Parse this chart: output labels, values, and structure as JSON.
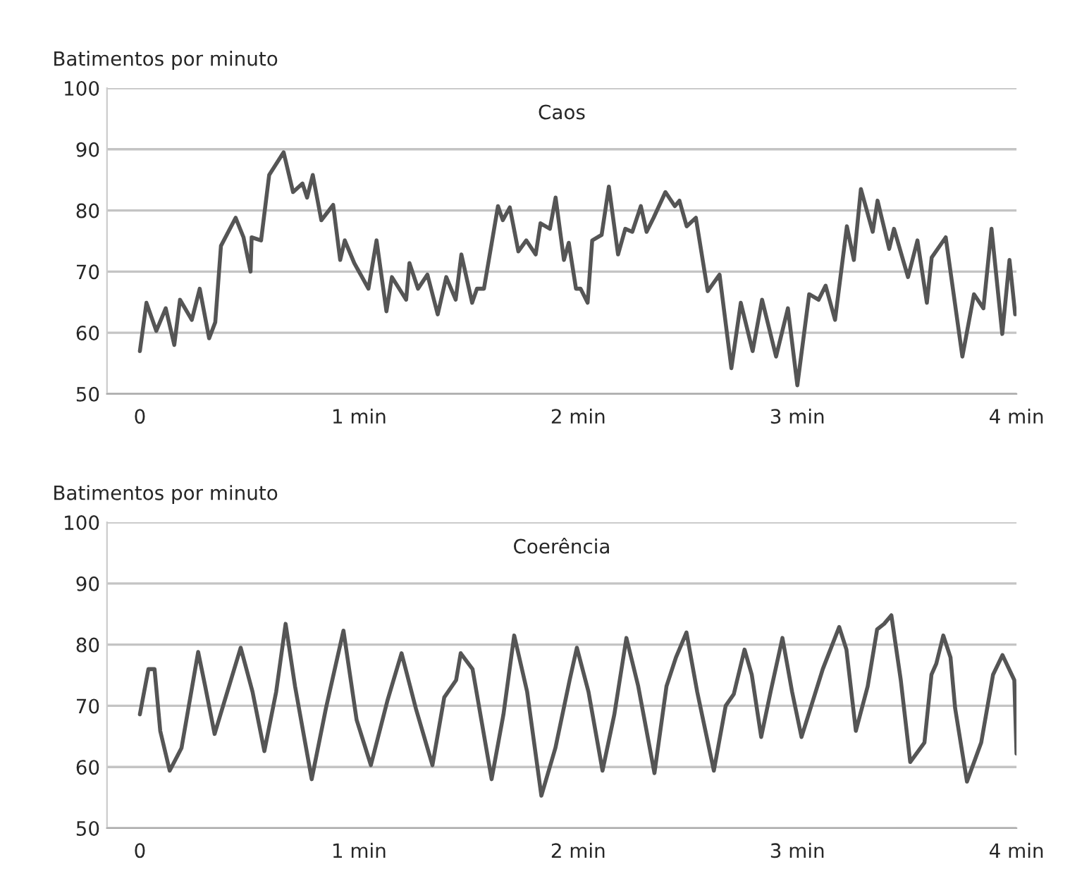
{
  "chart_data": [
    {
      "type": "line",
      "title": "Caos",
      "ylabel": "Batimentos por minuto",
      "xlim": [
        -0.15,
        4
      ],
      "ylim": [
        50,
        100
      ],
      "xticks": [
        0,
        {
          "value": 1,
          "label": "1 min"
        },
        {
          "value": 2,
          "label": "2 min"
        },
        {
          "value": 3,
          "label": "3 min"
        },
        {
          "value": 4,
          "label": "4 min"
        }
      ],
      "yticks": [
        50,
        60,
        70,
        80,
        90,
        100
      ],
      "grid": "y",
      "marker": "none",
      "line_style": "solid",
      "series": [
        {
          "color": "#555555",
          "x": [
            0,
            0.03,
            0.075,
            0.118,
            0.157,
            0.183,
            0.237,
            0.273,
            0.316,
            0.344,
            0.37,
            0.437,
            0.473,
            0.505,
            0.51,
            0.553,
            0.59,
            0.656,
            0.699,
            0.742,
            0.763,
            0.789,
            0.828,
            0.882,
            0.914,
            0.935,
            0.978,
            1.043,
            1.08,
            1.125,
            1.15,
            1.215,
            1.23,
            1.269,
            1.312,
            1.359,
            1.398,
            1.441,
            1.467,
            1.516,
            1.538,
            1.57,
            1.634,
            1.656,
            1.688,
            1.727,
            1.763,
            1.806,
            1.828,
            1.871,
            1.897,
            1.935,
            1.957,
            1.99,
            2.011,
            2.043,
            2.064,
            2.107,
            2.14,
            2.182,
            2.215,
            2.247,
            2.286,
            2.312,
            2.344,
            2.398,
            2.441,
            2.462,
            2.495,
            2.537,
            2.591,
            2.645,
            2.699,
            2.742,
            2.796,
            2.839,
            2.903,
            2.957,
            3.0,
            3.054,
            3.097,
            3.129,
            3.172,
            3.226,
            3.258,
            3.29,
            3.344,
            3.366,
            3.419,
            3.441,
            3.505,
            3.548,
            3.591,
            3.613,
            3.677,
            3.753,
            3.806,
            3.849,
            3.886,
            3.935,
            3.968,
            3.994
          ],
          "values": [
            57,
            64.9,
            60.3,
            64,
            58,
            65.4,
            62.1,
            67.2,
            59.1,
            61.7,
            74.2,
            78.8,
            75.6,
            70,
            75.6,
            75.1,
            85.8,
            89.5,
            83,
            84.4,
            82.1,
            85.8,
            78.4,
            80.9,
            71.9,
            75.1,
            71.4,
            67.2,
            75.1,
            63.5,
            69.1,
            65.4,
            71.4,
            67.2,
            69.5,
            63,
            69.1,
            65.4,
            72.8,
            64.9,
            67.2,
            67.2,
            80.7,
            78.4,
            80.5,
            73.3,
            75.1,
            72.8,
            77.9,
            77,
            82.1,
            71.9,
            74.7,
            67.2,
            67.2,
            64.9,
            75.1,
            76,
            83.9,
            72.8,
            77,
            76.5,
            80.7,
            76.5,
            78.8,
            83,
            80.7,
            81.6,
            77.4,
            78.8,
            66.8,
            69.5,
            54.2,
            64.9,
            57,
            65.4,
            56.1,
            64,
            51.4,
            66.3,
            65.4,
            67.7,
            62.1,
            77.4,
            71.9,
            83.5,
            76.5,
            81.6,
            73.7,
            77,
            69.1,
            75.1,
            64.9,
            72.3,
            75.6,
            56.1,
            66.3,
            64,
            77,
            59.8,
            71.9,
            63
          ]
        }
      ]
    },
    {
      "type": "line",
      "title": "Coerência",
      "ylabel": "Batimentos por minuto",
      "xlim": [
        -0.15,
        4
      ],
      "ylim": [
        50,
        100
      ],
      "xticks": [
        0,
        {
          "value": 1,
          "label": "1 min"
        },
        {
          "value": 2,
          "label": "2 min"
        },
        {
          "value": 3,
          "label": "3 min"
        },
        {
          "value": 4,
          "label": "4 min"
        }
      ],
      "yticks": [
        50,
        60,
        70,
        80,
        90,
        100
      ],
      "grid": "y",
      "marker": "none",
      "line_style": "solid",
      "series": [
        {
          "color": "#555555",
          "x": [
            0,
            0.039,
            0.067,
            0.093,
            0.136,
            0.19,
            0.266,
            0.298,
            0.341,
            0.384,
            0.46,
            0.514,
            0.568,
            0.622,
            0.665,
            0.708,
            0.784,
            0.849,
            0.929,
            0.989,
            1.054,
            1.13,
            1.194,
            1.259,
            1.335,
            1.389,
            1.443,
            1.464,
            1.518,
            1.605,
            1.659,
            1.708,
            1.767,
            1.832,
            1.896,
            1.961,
            1.994,
            2.047,
            2.111,
            2.165,
            2.22,
            2.274,
            2.348,
            2.403,
            2.446,
            2.494,
            2.543,
            2.619,
            2.673,
            2.71,
            2.759,
            2.792,
            2.835,
            2.878,
            2.932,
            2.976,
            3.019,
            3.116,
            3.191,
            3.224,
            3.267,
            3.321,
            3.364,
            3.396,
            3.429,
            3.472,
            3.515,
            3.58,
            3.612,
            3.634,
            3.666,
            3.699,
            3.72,
            3.774,
            3.839,
            3.893,
            3.936,
            3.99,
            4.0
          ],
          "values": [
            68.6,
            76,
            76,
            65.9,
            59.4,
            63.1,
            78.8,
            73.2,
            65.4,
            70.5,
            79.5,
            72.3,
            62.6,
            72.3,
            83.4,
            73.2,
            58,
            69.6,
            82.3,
            67.7,
            60.3,
            70.9,
            78.6,
            69.6,
            60.3,
            71.4,
            74.2,
            78.6,
            76,
            58,
            68.6,
            81.5,
            72.3,
            55.3,
            63.1,
            74.2,
            79.5,
            72.3,
            59.4,
            68.6,
            81.1,
            73.2,
            59,
            73.2,
            77.9,
            82,
            72.3,
            59.4,
            70,
            71.9,
            79.2,
            75.1,
            64.9,
            72.3,
            81.1,
            72.3,
            64.9,
            76,
            82.9,
            79.2,
            65.9,
            73.2,
            82.5,
            83.4,
            84.8,
            74.2,
            60.8,
            64,
            75.1,
            76.9,
            81.5,
            77.9,
            69.6,
            57.6,
            64,
            75.1,
            78.3,
            74.2,
            62.2
          ]
        }
      ]
    }
  ]
}
